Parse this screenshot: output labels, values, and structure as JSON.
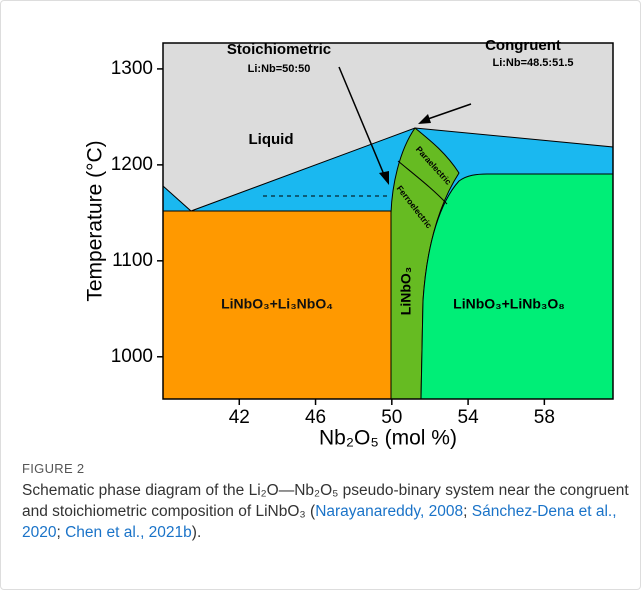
{
  "figure": {
    "y_label": "Temperature (°C)",
    "x_label": "Nb₂O₅ (mol %)",
    "xlim": [
      38,
      61.6
    ],
    "ylim": [
      956,
      1327
    ],
    "xticks": [
      42,
      46,
      50,
      54,
      58
    ],
    "yticks": [
      1000,
      1100,
      1200,
      1300
    ],
    "labels": {
      "stoichiometric": "Stoichiometric",
      "stoichiometric_ratio": "Li:Nb=50:50",
      "congruent": "Congruent",
      "congruent_ratio": "Li:Nb=48.5:51.5",
      "liquid": "Liquid",
      "paraelectric": "Paraelectric",
      "ferroelectric": "Ferroelectric",
      "left_phase": "LiNbO₃+Li₃NbO₄",
      "middle_phase": "LiNbO₃",
      "right_phase": "LiNbO₃+LiNb₃O₈"
    }
  },
  "caption": {
    "label": "FIGURE 2",
    "parts": [
      {
        "text": "Schematic phase diagram of the Li₂O—Nb₂O₅ pseudo-binary system near the congruent and stoichiometric composition of LiNbO₃ ("
      },
      {
        "text": "Narayanareddy, 2008",
        "link": true
      },
      {
        "text": "; "
      },
      {
        "text": "Sánchez-Dena et al., 2020",
        "link": true
      },
      {
        "text": "; "
      },
      {
        "text": "Chen et al., 2021b",
        "link": true
      },
      {
        "text": ")."
      }
    ]
  }
}
